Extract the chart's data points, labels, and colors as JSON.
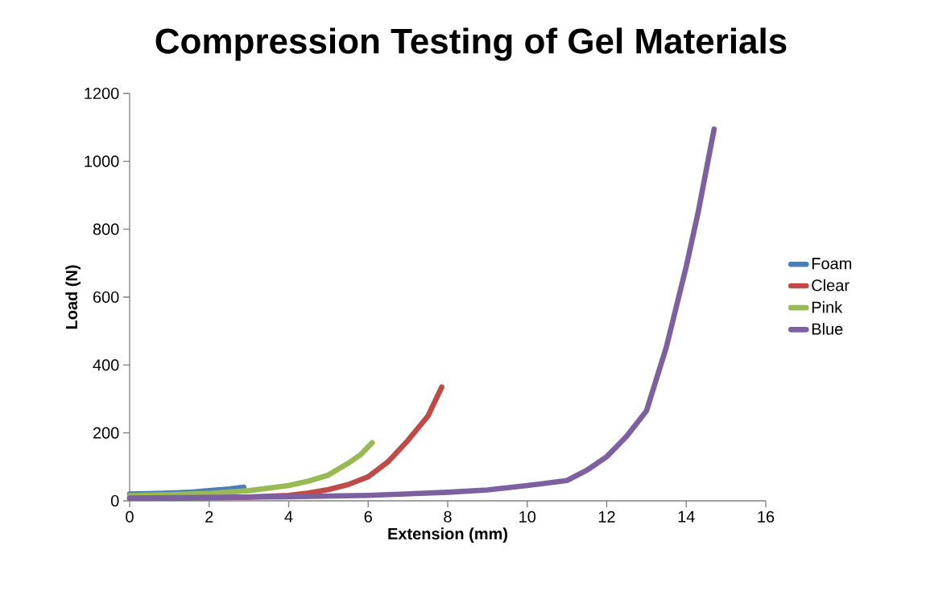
{
  "chart_data": {
    "type": "line",
    "title": "Compression Testing of Gel Materials",
    "xlabel": "Extension (mm)",
    "ylabel": "Load (N)",
    "xlim": [
      0,
      16
    ],
    "xticks": [
      0,
      2,
      4,
      6,
      8,
      10,
      12,
      14,
      16
    ],
    "ylim": [
      0,
      1200
    ],
    "yticks": [
      0,
      200,
      400,
      600,
      800,
      1000,
      1200
    ],
    "grid": false,
    "legend": "right",
    "marker": "none",
    "line_style": "solid",
    "series": [
      {
        "name": "Foam",
        "color": "#4a7ebb",
        "x": [
          0,
          0.5,
          1,
          1.5,
          2,
          2.5,
          2.87
        ],
        "values": [
          20,
          21,
          23,
          25,
          30,
          35,
          40
        ]
      },
      {
        "name": "Clear",
        "color": "#be4b48",
        "x": [
          0,
          1,
          2,
          3,
          4,
          4.5,
          5,
          5.5,
          6,
          6.5,
          7,
          7.5,
          7.85
        ],
        "values": [
          8,
          8,
          9,
          11,
          16,
          23,
          33,
          48,
          71,
          115,
          178,
          249,
          335
        ]
      },
      {
        "name": "Pink",
        "color": "#98b954",
        "x": [
          0,
          1,
          2,
          3,
          4,
          4.5,
          5,
          5.5,
          5.8,
          6.1
        ],
        "values": [
          15,
          18,
          22,
          30,
          45,
          58,
          76,
          111,
          135,
          171
        ]
      },
      {
        "name": "Blue",
        "color": "#7d60a0",
        "x": [
          0,
          2,
          4,
          6,
          8,
          9,
          10,
          10.5,
          11,
          11.5,
          12,
          12.5,
          13,
          13.5,
          14,
          14.3,
          14.7
        ],
        "values": [
          8,
          10,
          12,
          16,
          25,
          32,
          45,
          52,
          60,
          90,
          130,
          190,
          265,
          453,
          690,
          850,
          1095
        ]
      }
    ]
  }
}
